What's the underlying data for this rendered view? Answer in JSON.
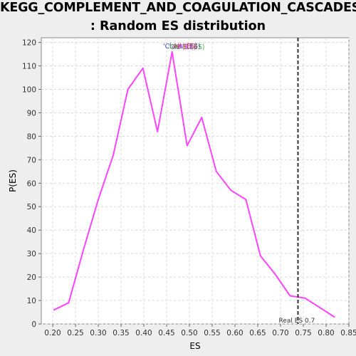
{
  "chart_data": {
    "type": "line",
    "title_line1": "KEGG_COMPLEMENT_AND_COAGULATION_CASCADES",
    "title_line2": ": Random ES distribution",
    "xlabel": "ES",
    "ylabel": "P(ES)",
    "xlim": [
      0.175,
      0.85
    ],
    "ylim": [
      0,
      122
    ],
    "x_ticks": [
      "0.20",
      "0.25",
      "0.30",
      "0.35",
      "0.40",
      "0.45",
      "0.50",
      "0.55",
      "0.60",
      "0.65",
      "0.70",
      "0.75",
      "0.80",
      "0.85"
    ],
    "x_tick_values": [
      0.2,
      0.25,
      0.3,
      0.35,
      0.4,
      0.45,
      0.5,
      0.55,
      0.6,
      0.65,
      0.7,
      0.75,
      0.8,
      0.85
    ],
    "y_ticks": [
      "0",
      "10",
      "20",
      "30",
      "40",
      "50",
      "60",
      "70",
      "80",
      "90",
      "100",
      "110",
      "120"
    ],
    "y_tick_values": [
      0,
      10,
      20,
      30,
      40,
      50,
      60,
      70,
      80,
      90,
      100,
      110,
      120
    ],
    "grid": true,
    "series": [
      {
        "color": "#ff44ff",
        "x": [
          0.203,
          0.235,
          0.268,
          0.3,
          0.333,
          0.365,
          0.398,
          0.43,
          0.462,
          0.495,
          0.527,
          0.559,
          0.591,
          0.624,
          0.656,
          0.689,
          0.721,
          0.754,
          0.786,
          0.818
        ],
        "y": [
          6,
          9,
          32,
          53,
          72,
          100,
          109,
          82,
          116,
          76,
          88,
          65,
          57,
          53,
          29,
          21,
          12,
          11,
          7,
          3
        ]
      }
    ],
    "real_es": {
      "value": 0.7383,
      "label": "Real ES 0.7"
    },
    "legend_entries": [
      {
        "label": "'Class' (ES)",
        "color": "#4444cc"
      },
      {
        "label": "'Cls B' (ES)",
        "color": "#44aa44"
      },
      {
        "label": "All (ES)",
        "color": "#cc4444"
      },
      {
        "label": "P(ES)",
        "color": "#cc44cc"
      }
    ]
  }
}
